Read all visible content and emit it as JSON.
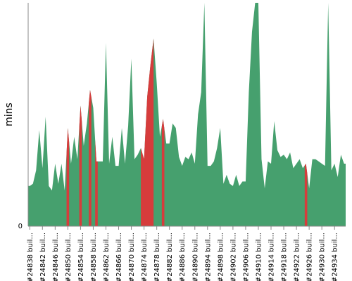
{
  "chart_data": {
    "type": "area",
    "title": "",
    "xlabel": "",
    "ylabel": "mins",
    "ylim": [
      0,
      100
    ],
    "yticks": [
      0
    ],
    "grid": false,
    "legend": "none",
    "colors": {
      "pass": "#46a06e",
      "fail": "#d63c3c"
    },
    "x_tick_labels": [
      "#24838 buil...",
      "#24842 buil...",
      "#24846 buil...",
      "#24850 buil...",
      "#24854 buil...",
      "#24858 buil...",
      "#24862 buil...",
      "#24866 buil...",
      "#24870 buil...",
      "#24874 buil...",
      "#24878 buil...",
      "#24882 buil...",
      "#24886 buil...",
      "#24890 buil...",
      "#24894 buil...",
      "#24898 buil...",
      "#24902 buil...",
      "#24906 buil...",
      "#24910 buil...",
      "#24914 buil...",
      "#24918 buil...",
      "#24922 buil...",
      "#24926 buil...",
      "#24930 buil...",
      "#24934 buil..."
    ],
    "builds": [
      {
        "x": 24838,
        "y": 18,
        "status": "pass"
      },
      {
        "x": 24839,
        "y": 19,
        "status": "pass"
      },
      {
        "x": 24840,
        "y": 25,
        "status": "pass"
      },
      {
        "x": 24841,
        "y": 43,
        "status": "pass"
      },
      {
        "x": 24842,
        "y": 26,
        "status": "pass"
      },
      {
        "x": 24843,
        "y": 49,
        "status": "pass"
      },
      {
        "x": 24844,
        "y": 18,
        "status": "pass"
      },
      {
        "x": 24845,
        "y": 16,
        "status": "pass"
      },
      {
        "x": 24846,
        "y": 28,
        "status": "pass"
      },
      {
        "x": 24847,
        "y": 19,
        "status": "pass"
      },
      {
        "x": 24848,
        "y": 28,
        "status": "pass"
      },
      {
        "x": 24849,
        "y": 16,
        "status": "pass"
      },
      {
        "x": 24850,
        "y": 44,
        "status": "fail"
      },
      {
        "x": 24851,
        "y": 28,
        "status": "pass"
      },
      {
        "x": 24852,
        "y": 40,
        "status": "pass"
      },
      {
        "x": 24853,
        "y": 30,
        "status": "pass"
      },
      {
        "x": 24854,
        "y": 54,
        "status": "fail"
      },
      {
        "x": 24855,
        "y": 36,
        "status": "pass"
      },
      {
        "x": 24856,
        "y": 46,
        "status": "pass"
      },
      {
        "x": 24857,
        "y": 61,
        "status": "fail"
      },
      {
        "x": 24858,
        "y": 53,
        "status": "pass"
      },
      {
        "x": 24859,
        "y": 29,
        "status": "fail"
      },
      {
        "x": 24860,
        "y": 29,
        "status": "pass"
      },
      {
        "x": 24861,
        "y": 29,
        "status": "pass"
      },
      {
        "x": 24862,
        "y": 82,
        "status": "pass"
      },
      {
        "x": 24863,
        "y": 28,
        "status": "pass"
      },
      {
        "x": 24864,
        "y": 40,
        "status": "pass"
      },
      {
        "x": 24865,
        "y": 27,
        "status": "pass"
      },
      {
        "x": 24866,
        "y": 27,
        "status": "pass"
      },
      {
        "x": 24867,
        "y": 44,
        "status": "pass"
      },
      {
        "x": 24868,
        "y": 28,
        "status": "pass"
      },
      {
        "x": 24869,
        "y": 45,
        "status": "pass"
      },
      {
        "x": 24870,
        "y": 75,
        "status": "pass"
      },
      {
        "x": 24871,
        "y": 30,
        "status": "pass"
      },
      {
        "x": 24872,
        "y": 32,
        "status": "pass"
      },
      {
        "x": 24873,
        "y": 35,
        "status": "fail"
      },
      {
        "x": 24874,
        "y": 30,
        "status": "fail"
      },
      {
        "x": 24875,
        "y": 58,
        "status": "fail"
      },
      {
        "x": 24876,
        "y": 72,
        "status": "fail"
      },
      {
        "x": 24877,
        "y": 84,
        "status": "fail"
      },
      {
        "x": 24878,
        "y": 64,
        "status": "pass"
      },
      {
        "x": 24879,
        "y": 40,
        "status": "pass"
      },
      {
        "x": 24880,
        "y": 48,
        "status": "fail"
      },
      {
        "x": 24881,
        "y": 37,
        "status": "pass"
      },
      {
        "x": 24882,
        "y": 37,
        "status": "pass"
      },
      {
        "x": 24883,
        "y": 46,
        "status": "pass"
      },
      {
        "x": 24884,
        "y": 44,
        "status": "pass"
      },
      {
        "x": 24885,
        "y": 31,
        "status": "pass"
      },
      {
        "x": 24886,
        "y": 27,
        "status": "pass"
      },
      {
        "x": 24887,
        "y": 31,
        "status": "pass"
      },
      {
        "x": 24888,
        "y": 30,
        "status": "pass"
      },
      {
        "x": 24889,
        "y": 33,
        "status": "pass"
      },
      {
        "x": 24890,
        "y": 28,
        "status": "pass"
      },
      {
        "x": 24891,
        "y": 50,
        "status": "pass"
      },
      {
        "x": 24892,
        "y": 60,
        "status": "pass"
      },
      {
        "x": 24893,
        "y": 100,
        "status": "pass"
      },
      {
        "x": 24894,
        "y": 27,
        "status": "pass"
      },
      {
        "x": 24895,
        "y": 27,
        "status": "pass"
      },
      {
        "x": 24896,
        "y": 29,
        "status": "pass"
      },
      {
        "x": 24897,
        "y": 35,
        "status": "pass"
      },
      {
        "x": 24898,
        "y": 44,
        "status": "pass"
      },
      {
        "x": 24899,
        "y": 19,
        "status": "pass"
      },
      {
        "x": 24900,
        "y": 23,
        "status": "pass"
      },
      {
        "x": 24901,
        "y": 19,
        "status": "pass"
      },
      {
        "x": 24902,
        "y": 18,
        "status": "pass"
      },
      {
        "x": 24903,
        "y": 23,
        "status": "pass"
      },
      {
        "x": 24904,
        "y": 18,
        "status": "pass"
      },
      {
        "x": 24905,
        "y": 20,
        "status": "pass"
      },
      {
        "x": 24906,
        "y": 20,
        "status": "pass"
      },
      {
        "x": 24907,
        "y": 60,
        "status": "pass"
      },
      {
        "x": 24908,
        "y": 87,
        "status": "pass"
      },
      {
        "x": 24909,
        "y": 100,
        "status": "pass"
      },
      {
        "x": 24910,
        "y": 100,
        "status": "pass"
      },
      {
        "x": 24911,
        "y": 30,
        "status": "pass"
      },
      {
        "x": 24912,
        "y": 17,
        "status": "pass"
      },
      {
        "x": 24913,
        "y": 29,
        "status": "pass"
      },
      {
        "x": 24914,
        "y": 28,
        "status": "pass"
      },
      {
        "x": 24915,
        "y": 47,
        "status": "pass"
      },
      {
        "x": 24916,
        "y": 34,
        "status": "pass"
      },
      {
        "x": 24917,
        "y": 31,
        "status": "pass"
      },
      {
        "x": 24918,
        "y": 32,
        "status": "pass"
      },
      {
        "x": 24919,
        "y": 30,
        "status": "pass"
      },
      {
        "x": 24920,
        "y": 33,
        "status": "pass"
      },
      {
        "x": 24921,
        "y": 26,
        "status": "pass"
      },
      {
        "x": 24922,
        "y": 28,
        "status": "pass"
      },
      {
        "x": 24923,
        "y": 30,
        "status": "pass"
      },
      {
        "x": 24924,
        "y": 26,
        "status": "pass"
      },
      {
        "x": 24925,
        "y": 28,
        "status": "fail"
      },
      {
        "x": 24926,
        "y": 17,
        "status": "pass"
      },
      {
        "x": 24927,
        "y": 30,
        "status": "pass"
      },
      {
        "x": 24928,
        "y": 30,
        "status": "pass"
      },
      {
        "x": 24929,
        "y": 29,
        "status": "pass"
      },
      {
        "x": 24930,
        "y": 28,
        "status": "pass"
      },
      {
        "x": 24931,
        "y": 27,
        "status": "pass"
      },
      {
        "x": 24932,
        "y": 100,
        "status": "pass"
      },
      {
        "x": 24933,
        "y": 25,
        "status": "pass"
      },
      {
        "x": 24934,
        "y": 28,
        "status": "pass"
      },
      {
        "x": 24935,
        "y": 22,
        "status": "pass"
      },
      {
        "x": 24936,
        "y": 32,
        "status": "pass"
      },
      {
        "x": 24937,
        "y": 28,
        "status": "pass"
      }
    ]
  }
}
